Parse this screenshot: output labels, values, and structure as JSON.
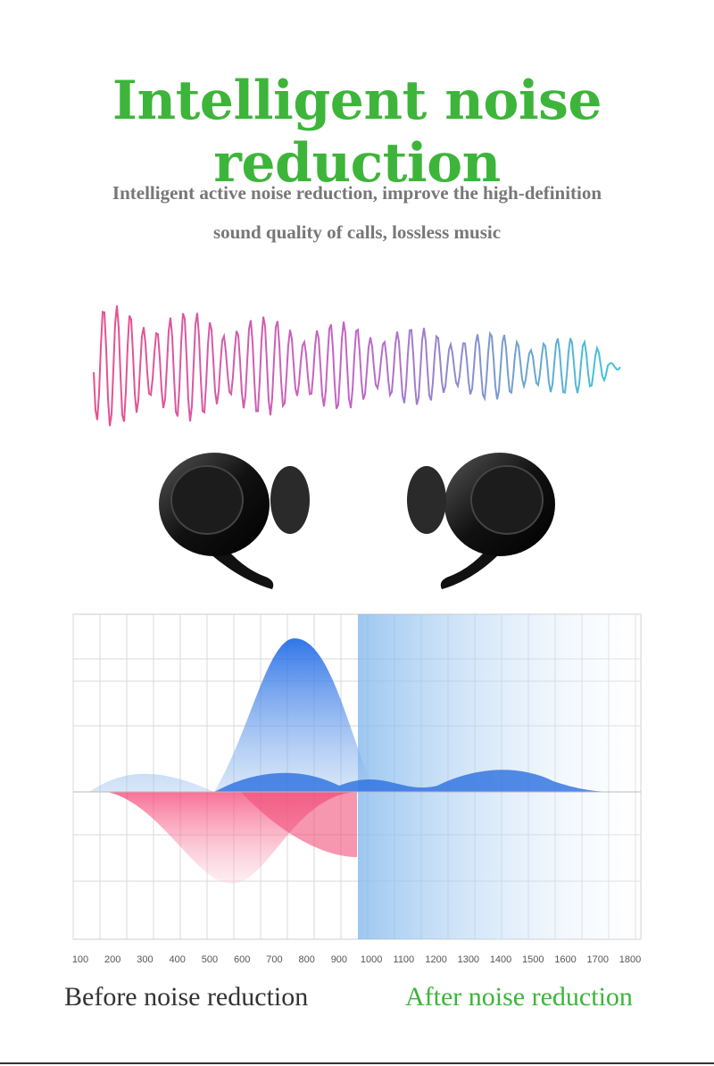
{
  "header": {
    "title": "Intelligent noise reduction",
    "subtitle": [
      "Intelligent active noise reduction, improve the high-definition",
      "sound quality of calls, lossless music"
    ]
  },
  "chart": {
    "x_labels": [
      100,
      200,
      300,
      400,
      500,
      600,
      700,
      800,
      900,
      1000,
      1100,
      1200,
      1300,
      1400,
      1500,
      1600,
      1700,
      1800
    ]
  },
  "captions": {
    "before": "Before noise reduction",
    "after": "After noise reduction"
  }
}
